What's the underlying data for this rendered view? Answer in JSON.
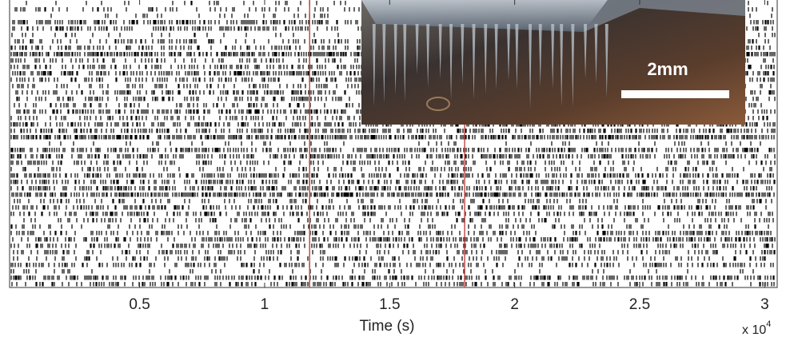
{
  "chart_data": {
    "type": "raster",
    "xlabel": "Time (s)",
    "x_multiplier": "x 10",
    "x_multiplier_exponent": "4",
    "xlim": [
      -0.02,
      3.05
    ],
    "xticks": [
      0.5,
      1,
      1.5,
      2,
      2.5,
      3
    ],
    "markers": {
      "color": "#c0504d",
      "x": [
        1.18,
        1.8
      ]
    },
    "inset_annotation": "2mm"
  }
}
